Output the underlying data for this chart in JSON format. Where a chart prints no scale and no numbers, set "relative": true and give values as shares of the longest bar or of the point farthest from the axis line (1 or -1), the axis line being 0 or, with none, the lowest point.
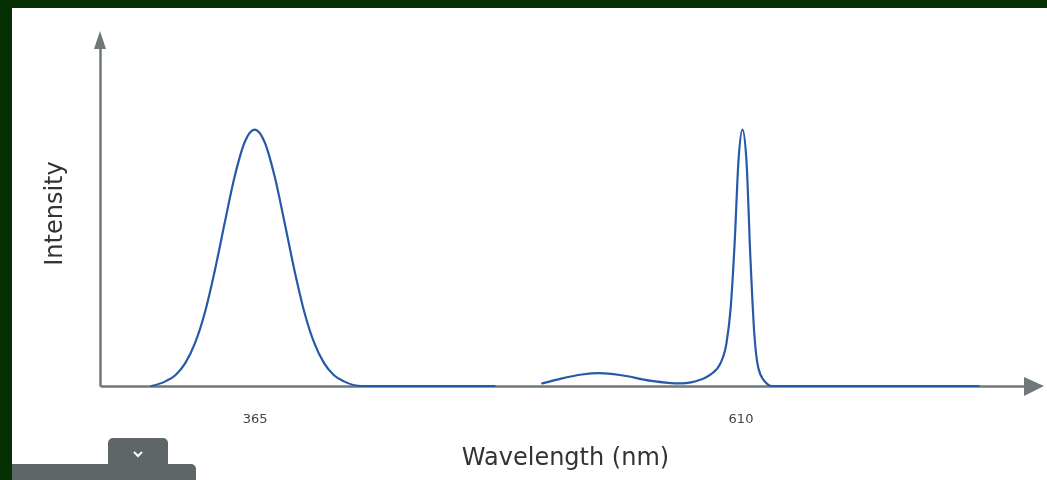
{
  "chart_data": {
    "type": "line",
    "relative": true,
    "xlabel": "Wavelength (nm)",
    "ylabel": "Intensity",
    "xlim": [
      287,
      756
    ],
    "xticks": [
      365,
      610
    ],
    "grid": false,
    "legend": false,
    "marker": "none",
    "line_style": "solid",
    "series": [
      {
        "color": "#2659a8",
        "x": [
          313,
          320,
          325,
          330,
          335,
          340,
          345,
          350,
          355,
          360,
          365,
          370,
          375,
          380,
          385,
          390,
          395,
          400,
          405,
          410,
          419,
          450,
          486,
          500,
          510,
          520,
          530,
          539,
          550,
          565,
          580,
          590,
          595,
          600,
          603,
          605,
          607,
          609,
          611,
          613,
          615,
          617,
          619,
          622,
          626,
          650,
          700,
          730
        ],
        "values": [
          0,
          0.018,
          0.042,
          0.089,
          0.169,
          0.29,
          0.454,
          0.641,
          0.82,
          0.952,
          1,
          0.952,
          0.82,
          0.641,
          0.454,
          0.29,
          0.169,
          0.089,
          0.042,
          0.018,
          0,
          0,
          0,
          null,
          0.01,
          0.03,
          0.045,
          0.05,
          0.042,
          0.02,
          0.01,
          0.025,
          0.045,
          0.09,
          0.17,
          0.3,
          0.55,
          0.88,
          1,
          0.88,
          0.5,
          0.2,
          0.07,
          0.02,
          0,
          0,
          0,
          0
        ]
      }
    ]
  }
}
